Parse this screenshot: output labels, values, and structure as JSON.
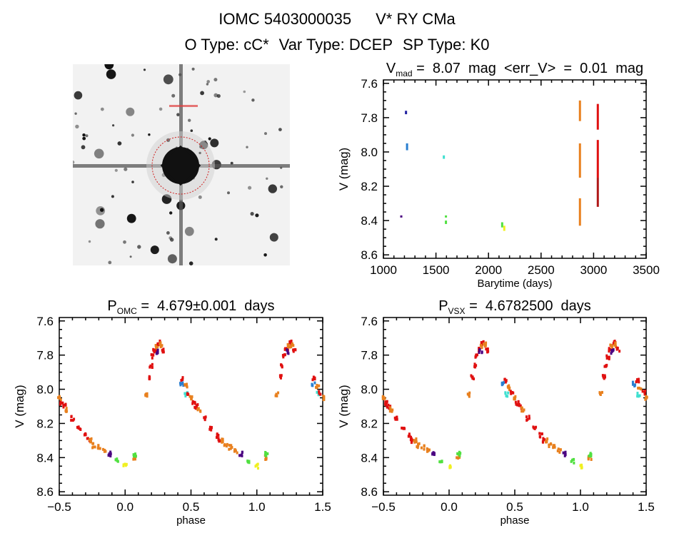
{
  "header": {
    "object_id": "IOMC 5403000035",
    "star_name": "V* RY CMa",
    "o_type": "O Type: cC*",
    "var_type": "Var Type: DCEP",
    "sp_type": "SP Type: K0"
  },
  "colors": {
    "purple": "#4a0080",
    "darkblue": "#2020a0",
    "blue": "#2a7fd0",
    "cyan": "#40e0d0",
    "green": "#50e040",
    "yellow": "#f0f020",
    "orange": "#e8801e",
    "red": "#e01010",
    "darkred": "#b01818"
  },
  "chart_data": [
    {
      "id": "timeseries",
      "type": "scatter",
      "title": {
        "main": "V",
        "sub": "mad",
        "rest": " = 8.07 mag <err_V> = 0.01 mag"
      },
      "xlabel": "Barytime (days)",
      "ylabel": "V (mag)",
      "xlim": [
        1000,
        3500
      ],
      "ylim": [
        8.62,
        7.58
      ],
      "y_inverted": true,
      "xticks": [
        1000,
        1500,
        2000,
        2500,
        3000,
        3500
      ],
      "xtick_labels": [
        "1000",
        "1500",
        "2000",
        "2500",
        "3000",
        "3500"
      ],
      "yticks": [
        7.6,
        7.8,
        8.0,
        8.2,
        8.4,
        8.6
      ],
      "ytick_labels": [
        "7.6",
        "7.8",
        "8.0",
        "8.2",
        "8.4",
        "8.6"
      ],
      "segments": [
        {
          "t": 1170,
          "v": [
            8.37,
            8.38
          ],
          "c": "purple"
        },
        {
          "t": 1215,
          "v": [
            7.76,
            7.78
          ],
          "c": "darkblue"
        },
        {
          "t": 1225,
          "v": [
            7.95,
            7.99
          ],
          "c": "blue"
        },
        {
          "t": 1575,
          "v": [
            8.02,
            8.04
          ],
          "c": "cyan"
        },
        {
          "t": 1595,
          "v": [
            8.37,
            8.38
          ],
          "c": "green"
        },
        {
          "t": 1595,
          "v": [
            8.4,
            8.42
          ],
          "c": "green"
        },
        {
          "t": 2130,
          "v": [
            8.41,
            8.44
          ],
          "c": "green"
        },
        {
          "t": 2150,
          "v": [
            8.43,
            8.46
          ],
          "c": "yellow"
        },
        {
          "t": 2870,
          "v": [
            7.7,
            7.82
          ],
          "c": "orange"
        },
        {
          "t": 2870,
          "v": [
            7.95,
            8.15
          ],
          "c": "orange"
        },
        {
          "t": 2870,
          "v": [
            8.27,
            8.43
          ],
          "c": "orange"
        },
        {
          "t": 3040,
          "v": [
            7.72,
            7.87
          ],
          "c": "red"
        },
        {
          "t": 3040,
          "v": [
            7.93,
            8.15
          ],
          "c": "red"
        },
        {
          "t": 3040,
          "v": [
            8.15,
            8.32
          ],
          "c": "darkred"
        }
      ]
    },
    {
      "id": "phase-omc",
      "type": "scatter",
      "title": {
        "main": "P",
        "sub": "OMC",
        "rest": " = 4.679±0.001 days"
      },
      "xlabel": "phase",
      "ylabel": "V (mag)",
      "xlim": [
        -0.5,
        1.5
      ],
      "ylim": [
        8.62,
        7.58
      ],
      "y_inverted": true,
      "xticks": [
        -0.5,
        0.0,
        0.5,
        1.0,
        1.5
      ],
      "xtick_labels": [
        "−0.5",
        "0.0",
        "0.5",
        "1.0",
        "1.5"
      ],
      "yticks": [
        7.6,
        7.8,
        8.0,
        8.2,
        8.4,
        8.6
      ],
      "ytick_labels": [
        "7.6",
        "7.8",
        "8.0",
        "8.2",
        "8.4",
        "8.6"
      ],
      "points": [
        [
          0.0,
          8.45,
          "yellow"
        ],
        [
          0.94,
          8.42,
          "green"
        ],
        [
          0.07,
          8.4,
          "orange"
        ],
        [
          0.075,
          8.38,
          "green"
        ],
        [
          0.155,
          8.03,
          "orange"
        ],
        [
          0.18,
          7.93,
          "red"
        ],
        [
          0.195,
          7.86,
          "red"
        ],
        [
          0.21,
          7.81,
          "red"
        ],
        [
          0.225,
          7.77,
          "red"
        ],
        [
          0.24,
          7.75,
          "orange"
        ],
        [
          0.255,
          7.73,
          "red"
        ],
        [
          0.27,
          7.74,
          "orange"
        ],
        [
          0.285,
          7.77,
          "red"
        ],
        [
          0.24,
          7.78,
          "purple"
        ],
        [
          0.43,
          7.97,
          "blue"
        ],
        [
          0.435,
          7.94,
          "red"
        ],
        [
          0.46,
          7.98,
          "orange"
        ],
        [
          0.465,
          8.03,
          "cyan"
        ],
        [
          0.48,
          8.02,
          "red"
        ],
        [
          0.5,
          8.05,
          "orange"
        ],
        [
          0.52,
          8.08,
          "red"
        ],
        [
          0.54,
          8.1,
          "red"
        ],
        [
          0.56,
          8.12,
          "orange"
        ],
        [
          0.6,
          8.17,
          "red"
        ],
        [
          0.65,
          8.23,
          "red"
        ],
        [
          0.7,
          8.27,
          "red"
        ],
        [
          0.72,
          8.3,
          "red"
        ],
        [
          0.74,
          8.3,
          "orange"
        ],
        [
          0.765,
          8.33,
          "orange"
        ],
        [
          0.8,
          8.34,
          "orange"
        ],
        [
          0.84,
          8.36,
          "orange"
        ],
        [
          0.88,
          8.38,
          "purple"
        ]
      ]
    },
    {
      "id": "phase-vsx",
      "type": "scatter",
      "title": {
        "main": "P",
        "sub": "VSX",
        "rest": " = 4.6782500 days"
      },
      "xlabel": "phase",
      "ylabel": "V (mag)",
      "xlim": [
        -0.5,
        1.5
      ],
      "ylim": [
        8.62,
        7.58
      ],
      "y_inverted": true,
      "xticks": [
        -0.5,
        0.0,
        0.5,
        1.0,
        1.5
      ],
      "xtick_labels": [
        "−0.5",
        "0.0",
        "0.5",
        "1.0",
        "1.5"
      ],
      "yticks": [
        7.6,
        7.8,
        8.0,
        8.2,
        8.4,
        8.6
      ],
      "ytick_labels": [
        "7.6",
        "7.8",
        "8.0",
        "8.2",
        "8.4",
        "8.6"
      ],
      "points": [
        [
          0.0,
          8.45,
          "yellow"
        ],
        [
          0.94,
          8.42,
          "green"
        ],
        [
          0.07,
          8.4,
          "orange"
        ],
        [
          0.075,
          8.38,
          "green"
        ],
        [
          0.155,
          8.03,
          "orange"
        ],
        [
          0.18,
          7.93,
          "red"
        ],
        [
          0.195,
          7.86,
          "red"
        ],
        [
          0.21,
          7.81,
          "red"
        ],
        [
          0.225,
          7.77,
          "red"
        ],
        [
          0.24,
          7.75,
          "orange"
        ],
        [
          0.255,
          7.73,
          "red"
        ],
        [
          0.27,
          7.74,
          "orange"
        ],
        [
          0.285,
          7.77,
          "red"
        ],
        [
          0.24,
          7.78,
          "purple"
        ],
        [
          0.41,
          7.97,
          "blue"
        ],
        [
          0.435,
          7.95,
          "red"
        ],
        [
          0.45,
          7.99,
          "orange"
        ],
        [
          0.44,
          8.03,
          "cyan"
        ],
        [
          0.48,
          8.02,
          "red"
        ],
        [
          0.5,
          8.05,
          "orange"
        ],
        [
          0.52,
          8.08,
          "red"
        ],
        [
          0.54,
          8.1,
          "red"
        ],
        [
          0.56,
          8.12,
          "orange"
        ],
        [
          0.6,
          8.17,
          "red"
        ],
        [
          0.65,
          8.23,
          "red"
        ],
        [
          0.7,
          8.27,
          "red"
        ],
        [
          0.72,
          8.3,
          "red"
        ],
        [
          0.74,
          8.3,
          "orange"
        ],
        [
          0.765,
          8.33,
          "orange"
        ],
        [
          0.8,
          8.34,
          "orange"
        ],
        [
          0.84,
          8.36,
          "orange"
        ],
        [
          0.88,
          8.38,
          "purple"
        ]
      ]
    }
  ]
}
